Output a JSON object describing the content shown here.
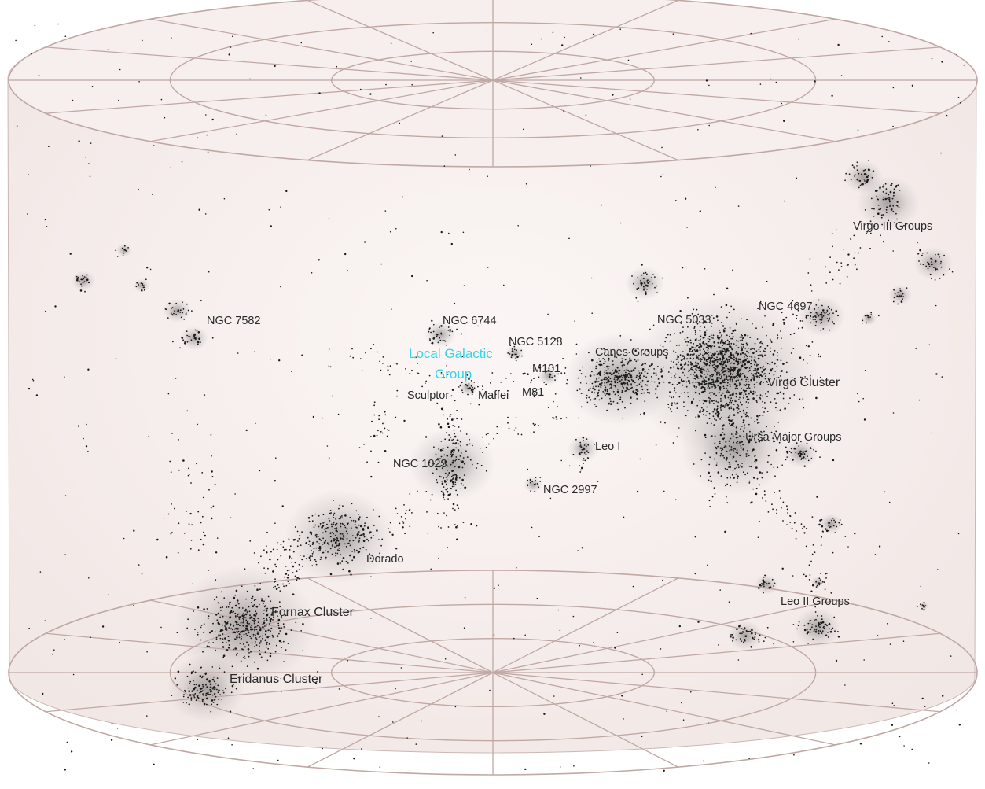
{
  "labels": {
    "ngc7582": "NGC 7582",
    "ngc6744": "NGC 6744",
    "ngc5128": "NGC 5128",
    "ngc5033": "NGC 5033",
    "ngc4697": "NGC 4697",
    "local_group_line1": "Local Galactic",
    "local_group_line2": "Group",
    "canes": "Canes Groups",
    "m101": "M101",
    "m81": "M81",
    "sculptor": "Sculptor",
    "maffei": "Maffei",
    "virgo_cluster": "Virgo Cluster",
    "virgo_iii": "Virgo III Groups",
    "ursa_major": "Ursa Major Groups",
    "leo_i": "Leo I",
    "ngc1023": "NGC 1023",
    "ngc2997": "NGC 2997",
    "dorado": "Dorado",
    "fornax": "Fornax Cluster",
    "eridanus": "Eridanus Cluster",
    "leo_ii": "Leo II Groups"
  },
  "colors": {
    "grid_line": "#c0a8a4",
    "body_fill": "#f5eeed",
    "highlight_label": "#33d6e6",
    "label": "#2a2a2a",
    "galaxy_dot": "#1a1a1a"
  }
}
